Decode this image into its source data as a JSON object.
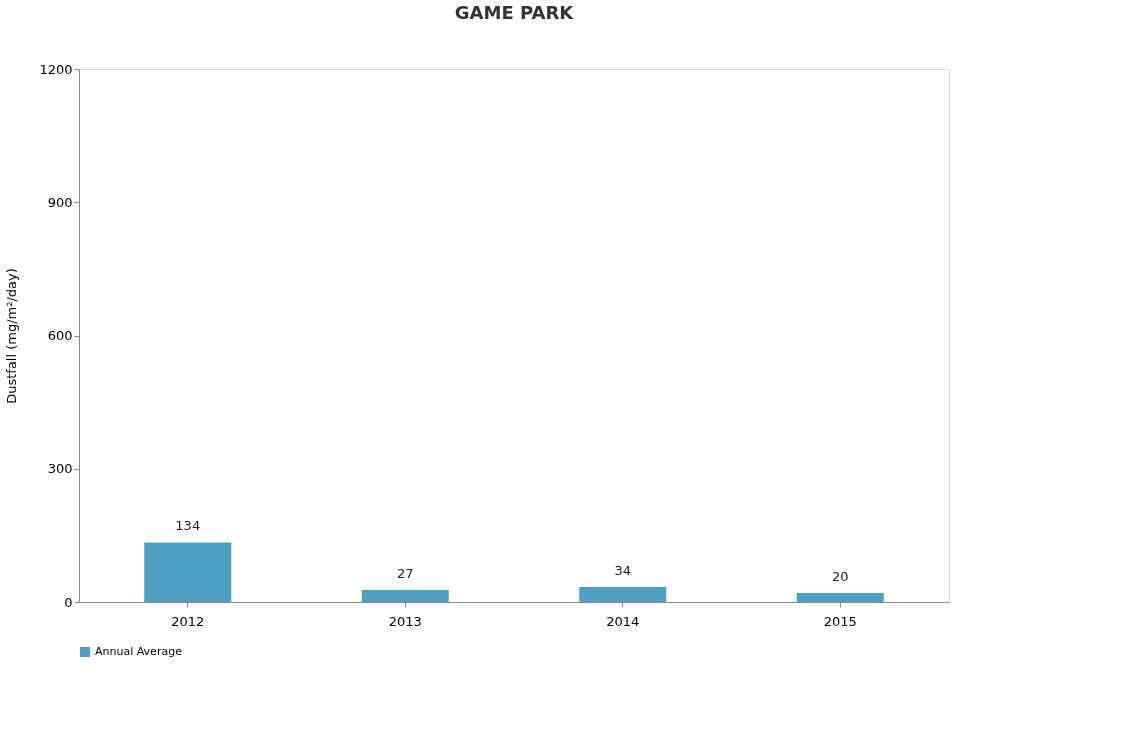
{
  "chart_data": {
    "type": "bar",
    "title": "GAME PARK",
    "ylabel": "Dustfall (mg/m²/day)",
    "categories": [
      "2012",
      "2013",
      "2014",
      "2015"
    ],
    "series": [
      {
        "name": "Annual Average",
        "color": "#4f9fc3",
        "values": [
          134,
          27,
          34,
          20
        ]
      }
    ],
    "ylim": [
      0,
      1200
    ],
    "yticks": [
      0,
      300,
      600,
      900,
      1200
    ],
    "data_labels": true,
    "legend": "bottom",
    "grid": false
  }
}
